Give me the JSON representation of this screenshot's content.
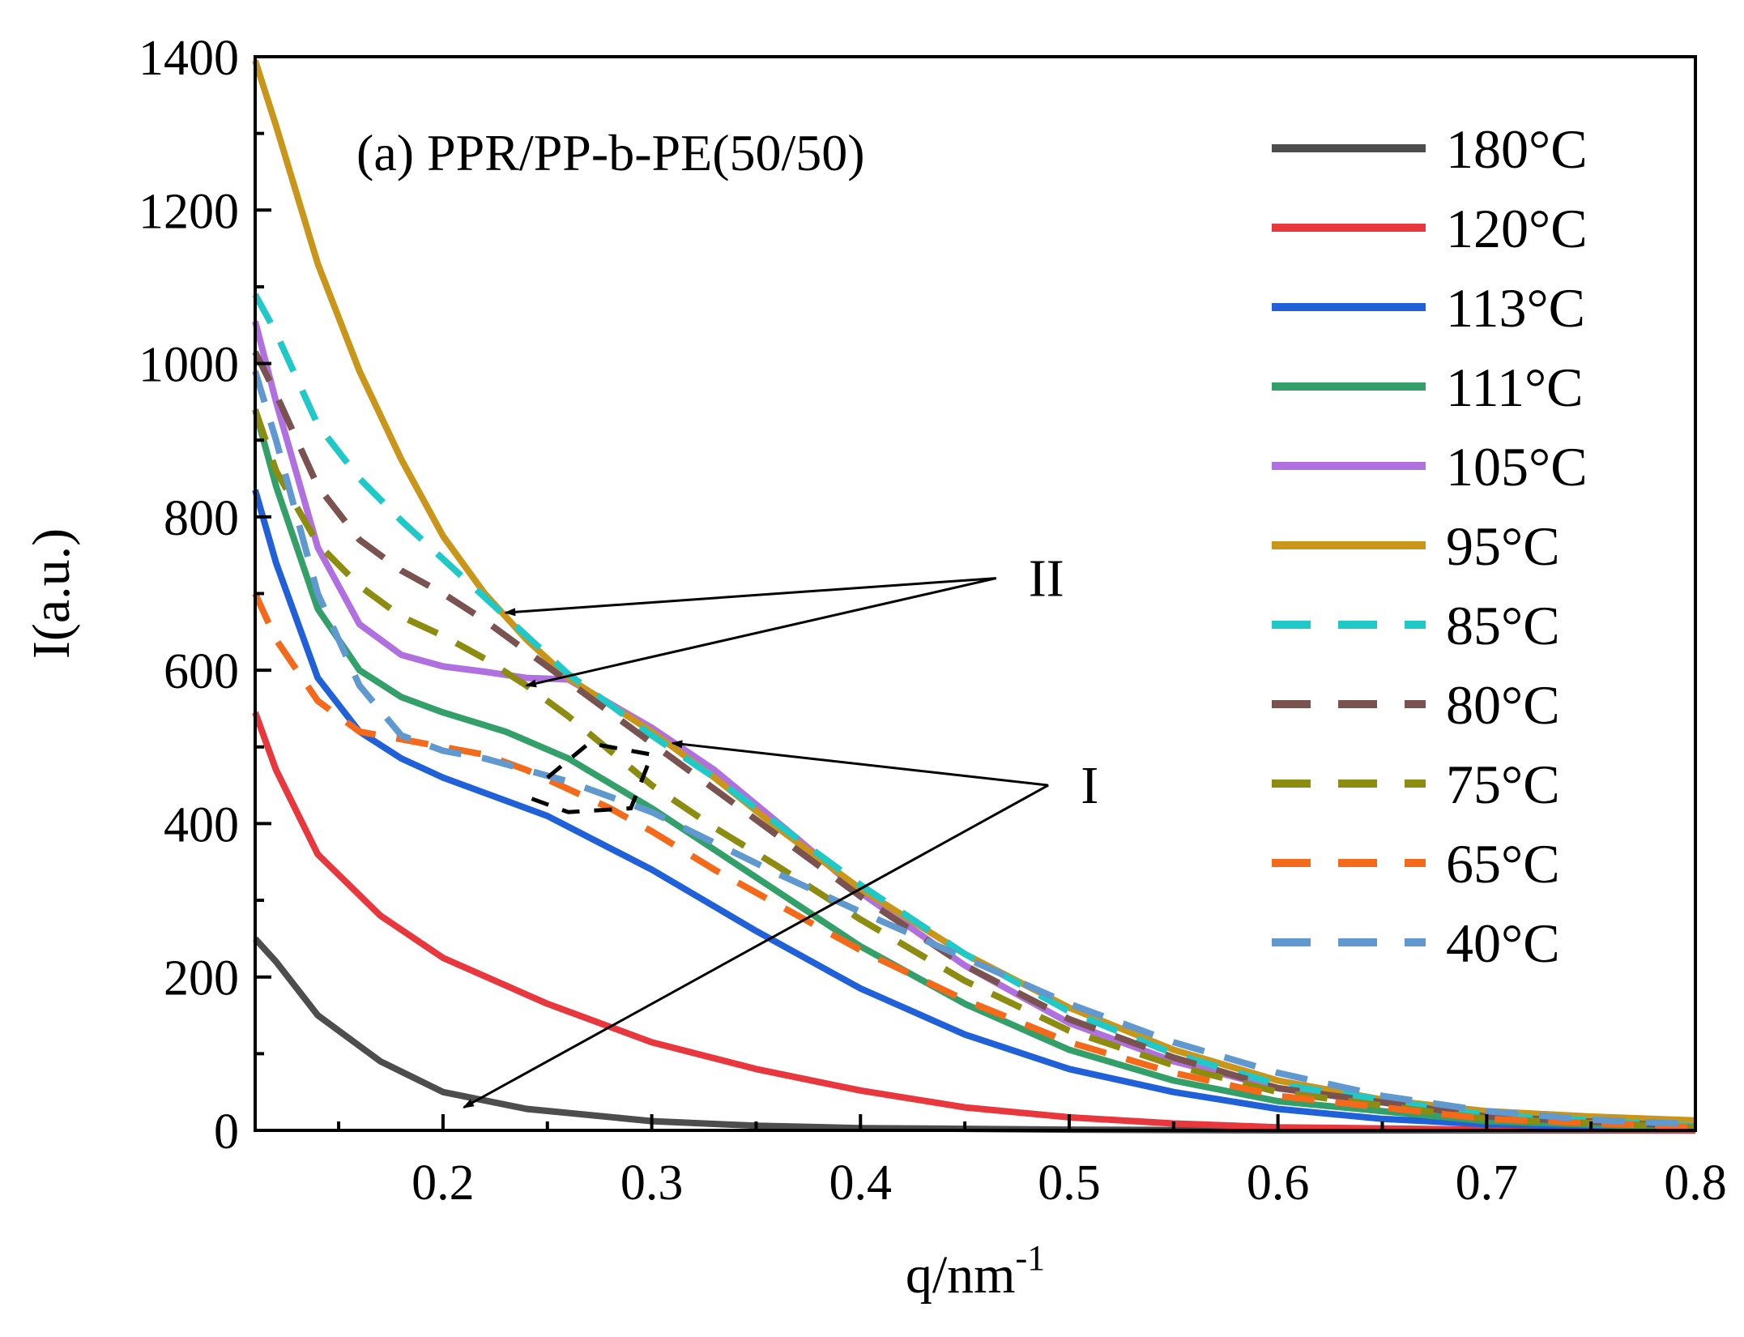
{
  "chart_data": {
    "type": "line",
    "title": "(a) PPR/PP-b-PE(50/50)",
    "xlabel": "q/nm",
    "xlabel_superscript": "-1",
    "ylabel": "I(a.u.)",
    "xlim": [
      0.11,
      0.8
    ],
    "ylim": [
      0,
      1400
    ],
    "xticks": [
      0.2,
      0.3,
      0.4,
      0.5,
      0.6,
      0.7,
      0.8
    ],
    "xtick_labels": [
      "0.2",
      "0.3",
      "0.4",
      "0.5",
      "0.6",
      "0.7",
      "0.8"
    ],
    "yticks": [
      0,
      200,
      400,
      600,
      800,
      1000,
      1200,
      1400
    ],
    "ytick_labels": [
      "0",
      "200",
      "400",
      "600",
      "800",
      "1000",
      "1200",
      "1400"
    ],
    "legend_position": "right",
    "series": [
      {
        "name": "180°C",
        "color": "#4d4d4d",
        "style": "solid",
        "x": [
          0.11,
          0.12,
          0.14,
          0.17,
          0.2,
          0.24,
          0.3,
          0.35,
          0.4,
          0.5,
          0.6,
          0.7,
          0.8
        ],
        "y": [
          250,
          220,
          150,
          90,
          50,
          28,
          12,
          6,
          3,
          1,
          0,
          0,
          0
        ]
      },
      {
        "name": "120°C",
        "color": "#e8373d",
        "style": "solid",
        "x": [
          0.11,
          0.12,
          0.14,
          0.17,
          0.2,
          0.25,
          0.3,
          0.35,
          0.4,
          0.45,
          0.5,
          0.55,
          0.6,
          0.7,
          0.8
        ],
        "y": [
          545,
          470,
          360,
          280,
          225,
          165,
          115,
          80,
          52,
          30,
          17,
          9,
          4,
          1,
          0
        ]
      },
      {
        "name": "113°C",
        "color": "#2060d8",
        "style": "solid",
        "x": [
          0.11,
          0.12,
          0.14,
          0.16,
          0.18,
          0.2,
          0.25,
          0.3,
          0.35,
          0.4,
          0.45,
          0.5,
          0.55,
          0.6,
          0.65,
          0.7,
          0.8
        ],
        "y": [
          835,
          740,
          590,
          520,
          485,
          460,
          410,
          340,
          260,
          185,
          125,
          80,
          50,
          28,
          15,
          8,
          2
        ]
      },
      {
        "name": "111°C",
        "color": "#33a06a",
        "style": "solid",
        "x": [
          0.11,
          0.12,
          0.14,
          0.16,
          0.18,
          0.2,
          0.23,
          0.26,
          0.3,
          0.35,
          0.4,
          0.45,
          0.5,
          0.55,
          0.6,
          0.7,
          0.8
        ],
        "y": [
          940,
          840,
          680,
          600,
          565,
          545,
          520,
          485,
          420,
          330,
          240,
          165,
          105,
          65,
          38,
          12,
          3
        ]
      },
      {
        "name": "105°C",
        "color": "#b070e0",
        "style": "solid",
        "x": [
          0.11,
          0.12,
          0.14,
          0.16,
          0.18,
          0.2,
          0.22,
          0.24,
          0.26,
          0.3,
          0.33,
          0.37,
          0.4,
          0.45,
          0.5,
          0.55,
          0.6,
          0.7,
          0.8
        ],
        "y": [
          1055,
          950,
          760,
          660,
          620,
          605,
          598,
          590,
          588,
          525,
          470,
          380,
          310,
          215,
          140,
          90,
          55,
          18,
          5
        ]
      },
      {
        "name": "95°C",
        "color": "#c9961a",
        "style": "solid",
        "x": [
          0.11,
          0.12,
          0.14,
          0.16,
          0.18,
          0.2,
          0.22,
          0.24,
          0.26,
          0.28,
          0.3,
          0.33,
          0.36,
          0.4,
          0.45,
          0.5,
          0.55,
          0.6,
          0.65,
          0.7,
          0.75,
          0.8
        ],
        "y": [
          1395,
          1310,
          1130,
          990,
          875,
          775,
          700,
          640,
          590,
          555,
          520,
          460,
          395,
          315,
          230,
          160,
          105,
          65,
          40,
          25,
          18,
          13
        ]
      },
      {
        "name": "85°C",
        "color": "#20c8c8",
        "style": "dashed",
        "x": [
          0.11,
          0.12,
          0.14,
          0.16,
          0.18,
          0.2,
          0.22,
          0.24,
          0.26,
          0.28,
          0.3,
          0.33,
          0.36,
          0.4,
          0.45,
          0.5,
          0.55,
          0.6,
          0.7,
          0.8
        ],
        "y": [
          1090,
          1040,
          920,
          850,
          795,
          745,
          695,
          645,
          595,
          555,
          515,
          460,
          400,
          320,
          230,
          155,
          100,
          60,
          20,
          6
        ]
      },
      {
        "name": "80°C",
        "color": "#7a5250",
        "style": "dashed",
        "x": [
          0.11,
          0.12,
          0.14,
          0.16,
          0.18,
          0.2,
          0.22,
          0.24,
          0.26,
          0.28,
          0.3,
          0.33,
          0.36,
          0.4,
          0.45,
          0.5,
          0.55,
          0.6,
          0.7,
          0.8
        ],
        "y": [
          1015,
          960,
          840,
          770,
          730,
          700,
          665,
          625,
          585,
          545,
          505,
          445,
          385,
          305,
          215,
          145,
          95,
          55,
          18,
          5
        ]
      },
      {
        "name": "75°C",
        "color": "#8c8c10",
        "style": "dashed",
        "x": [
          0.11,
          0.12,
          0.14,
          0.16,
          0.18,
          0.2,
          0.22,
          0.24,
          0.26,
          0.28,
          0.3,
          0.33,
          0.36,
          0.4,
          0.45,
          0.5,
          0.55,
          0.6,
          0.7,
          0.8
        ],
        "y": [
          940,
          860,
          765,
          710,
          670,
          645,
          615,
          580,
          540,
          495,
          450,
          395,
          345,
          275,
          195,
          130,
          85,
          50,
          15,
          4
        ]
      },
      {
        "name": "65°C",
        "color": "#f46a1a",
        "style": "dashed",
        "x": [
          0.11,
          0.12,
          0.14,
          0.16,
          0.18,
          0.2,
          0.22,
          0.24,
          0.26,
          0.28,
          0.3,
          0.33,
          0.36,
          0.4,
          0.45,
          0.5,
          0.55,
          0.6,
          0.7,
          0.8
        ],
        "y": [
          700,
          640,
          560,
          520,
          510,
          500,
          490,
          470,
          445,
          420,
          390,
          340,
          295,
          235,
          170,
          115,
          75,
          45,
          15,
          4
        ]
      },
      {
        "name": "40°C",
        "color": "#6098d0",
        "style": "dashed",
        "x": [
          0.11,
          0.12,
          0.14,
          0.16,
          0.18,
          0.2,
          0.22,
          0.24,
          0.26,
          0.28,
          0.3,
          0.33,
          0.36,
          0.4,
          0.45,
          0.5,
          0.55,
          0.6,
          0.65,
          0.7,
          0.75,
          0.8
        ],
        "y": [
          990,
          900,
          700,
          580,
          515,
          495,
          485,
          470,
          455,
          435,
          415,
          375,
          335,
          285,
          225,
          165,
          115,
          75,
          45,
          25,
          14,
          8
        ]
      }
    ],
    "annotations": [
      {
        "label": "II",
        "text_at": [
          0.465,
          720
        ],
        "arrows_to": [
          [
            0.23,
            675
          ],
          [
            0.24,
            580
          ]
        ]
      },
      {
        "label": "I",
        "text_at": [
          0.49,
          450
        ],
        "arrows_to": [
          [
            0.31,
            505
          ],
          [
            0.21,
            30
          ]
        ]
      }
    ]
  }
}
